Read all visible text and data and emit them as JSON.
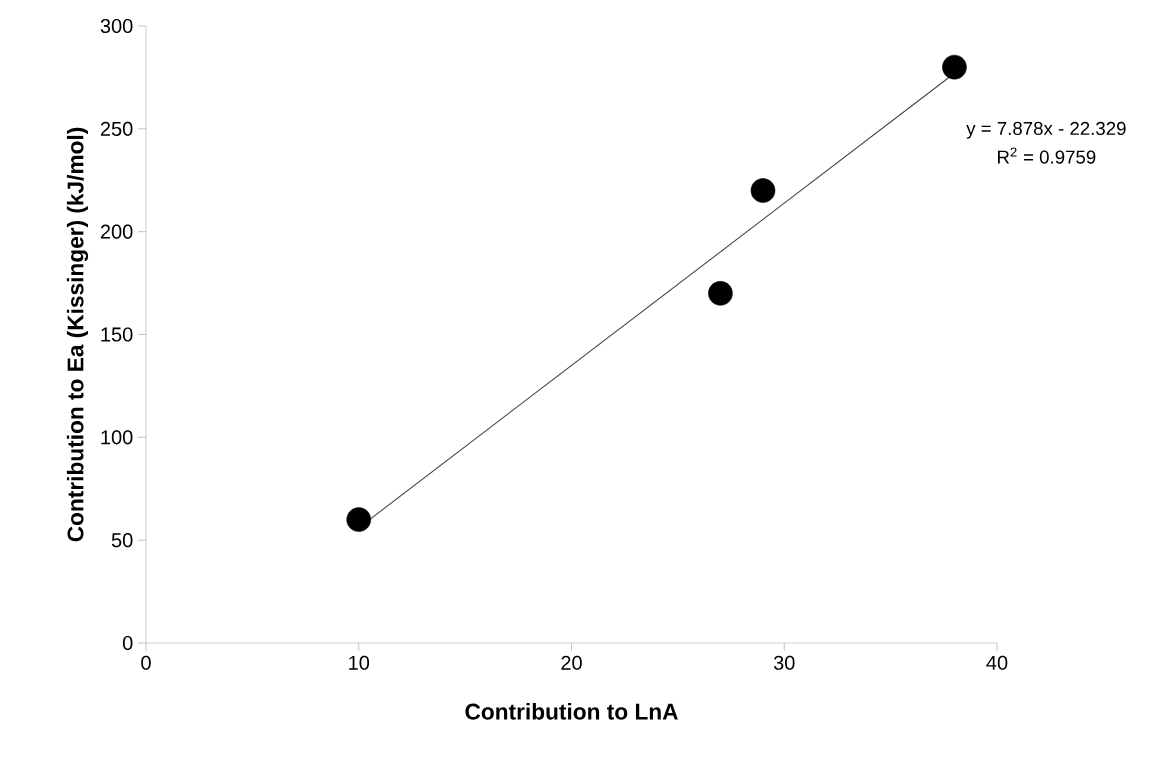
{
  "chart_data": {
    "type": "scatter",
    "xlabel": "Contribution to LnA",
    "ylabel": "Contribution to Ea (Kissinger) (kJ/mol)",
    "xlim": [
      0,
      40
    ],
    "xticks": [
      0,
      10,
      20,
      30,
      40
    ],
    "ylim": [
      0,
      300
    ],
    "yticks": [
      0,
      50,
      100,
      150,
      200,
      250,
      300
    ],
    "series": [
      {
        "x": [
          10,
          27,
          29,
          38
        ],
        "values": [
          60,
          170,
          220,
          280
        ],
        "color": "#000000",
        "marker": "circle"
      },
      {
        "type": "line",
        "x": [
          10,
          38
        ],
        "values": [
          56,
          277
        ],
        "color": "#404040",
        "marker": "none",
        "line_style": "solid"
      }
    ],
    "annotations": [
      "y = 7.878x - 22.329",
      "R$^{2}$ = 0.9759"
    ]
  }
}
